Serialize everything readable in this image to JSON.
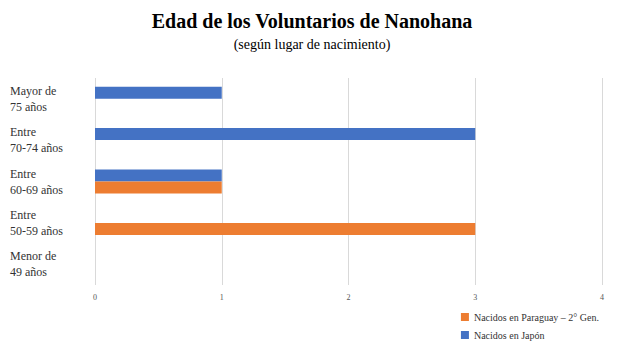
{
  "chart_data": {
    "type": "bar",
    "orientation": "horizontal",
    "title": "Edad de los Voluntarios de Nanohana",
    "subtitle": "(según lugar de nacimiento)",
    "categories": [
      "Menor de 49 años",
      "Entre 50-59 años",
      "Entre 60-69 años",
      "Entre 70-74 años",
      "Mayor de 75 años"
    ],
    "series": [
      {
        "name": "Nacidos en Paraguay – 2° Gen.",
        "color": "#ed7d31",
        "values": [
          0,
          3,
          1,
          0,
          0
        ]
      },
      {
        "name": "Nacidos en Japón",
        "color": "#4472c4",
        "values": [
          0,
          0,
          1,
          3,
          1
        ]
      }
    ],
    "xlim": [
      0,
      4
    ],
    "xticks": [
      0,
      1,
      2,
      3,
      4
    ],
    "grid": true,
    "legend": "bottom-right"
  }
}
